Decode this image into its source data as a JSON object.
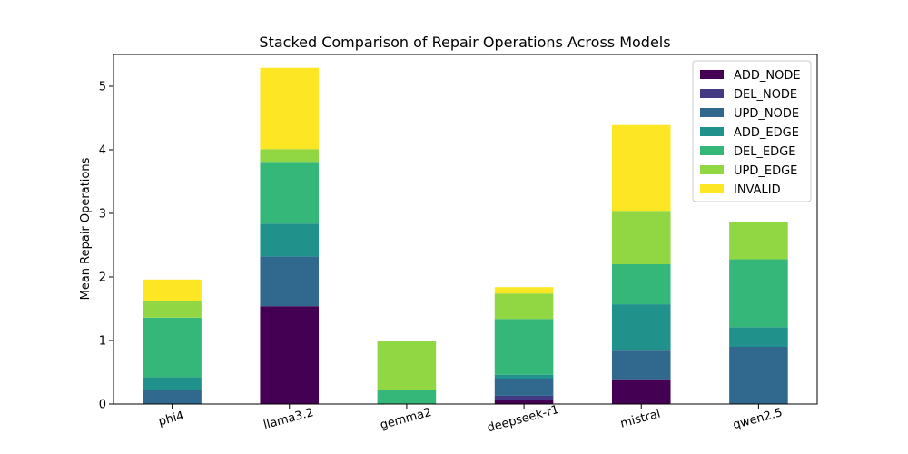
{
  "chart_data": {
    "type": "bar",
    "stacked": true,
    "title": "Stacked Comparison of Repair Operations Across Models",
    "xlabel": "",
    "ylabel": "Mean Repair Operations",
    "ylim": [
      0,
      5.5
    ],
    "yticks": [
      0,
      1,
      2,
      3,
      4,
      5
    ],
    "categories": [
      "phi4",
      "llama3.2",
      "gemma2",
      "deepseek-r1",
      "mistral",
      "qwen2.5"
    ],
    "legend_position": "top-right",
    "grid": false,
    "series": [
      {
        "name": "ADD_NODE",
        "color": "#440154",
        "values": [
          0.0,
          1.54,
          0.0,
          0.06,
          0.39,
          0.0
        ]
      },
      {
        "name": "DEL_NODE",
        "color": "#443983",
        "values": [
          0.0,
          0.0,
          0.0,
          0.07,
          0.0,
          0.0
        ]
      },
      {
        "name": "UPD_NODE",
        "color": "#31688e",
        "values": [
          0.22,
          0.78,
          0.0,
          0.27,
          0.45,
          0.9
        ]
      },
      {
        "name": "ADD_EDGE",
        "color": "#21918c",
        "values": [
          0.2,
          0.52,
          0.0,
          0.06,
          0.73,
          0.31
        ]
      },
      {
        "name": "DEL_EDGE",
        "color": "#35b779",
        "values": [
          0.94,
          0.97,
          0.22,
          0.88,
          0.63,
          1.07
        ]
      },
      {
        "name": "UPD_EDGE",
        "color": "#90d743",
        "values": [
          0.26,
          0.2,
          0.78,
          0.4,
          0.84,
          0.58
        ]
      },
      {
        "name": "INVALID",
        "color": "#fde725",
        "values": [
          0.34,
          1.28,
          0.0,
          0.1,
          1.35,
          0.0
        ]
      }
    ]
  }
}
